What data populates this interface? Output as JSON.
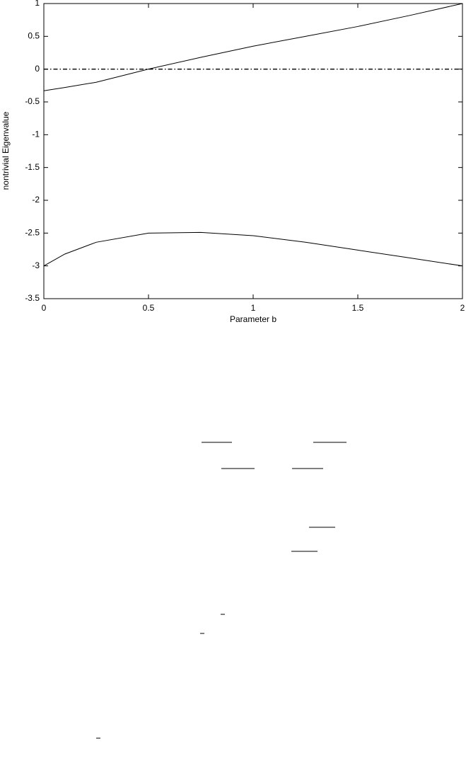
{
  "chart_data": {
    "type": "line",
    "xlabel": "Parameter b",
    "ylabel": "nontrivial Eigenvalue",
    "x": [
      0,
      0.1,
      0.25,
      0.5,
      0.75,
      1,
      1.25,
      1.5,
      1.75,
      2
    ],
    "series": [
      {
        "color": "#000000",
        "style": "solid",
        "values": [
          -0.33,
          -0.28,
          -0.2,
          0.0,
          0.18,
          0.35,
          0.5,
          0.65,
          0.82,
          1.0
        ]
      },
      {
        "color": "#000000",
        "style": "solid",
        "values": [
          -3.0,
          -2.82,
          -2.64,
          -2.5,
          -2.49,
          -2.54,
          -2.64,
          -2.76,
          -2.88,
          -3.0
        ]
      },
      {
        "color": "#000000",
        "style": "dashdot",
        "values": [
          0,
          0,
          0,
          0,
          0,
          0,
          0,
          0,
          0,
          0
        ]
      }
    ],
    "xlim": [
      0,
      2
    ],
    "xticks": [
      0,
      0.5,
      1,
      1.5,
      2
    ],
    "ylim": [
      -3.5,
      1
    ],
    "yticks": [
      1,
      0.5,
      0,
      -0.5,
      -1,
      -1.5,
      -2,
      -2.5,
      -3,
      -3.5
    ],
    "grid": false
  }
}
